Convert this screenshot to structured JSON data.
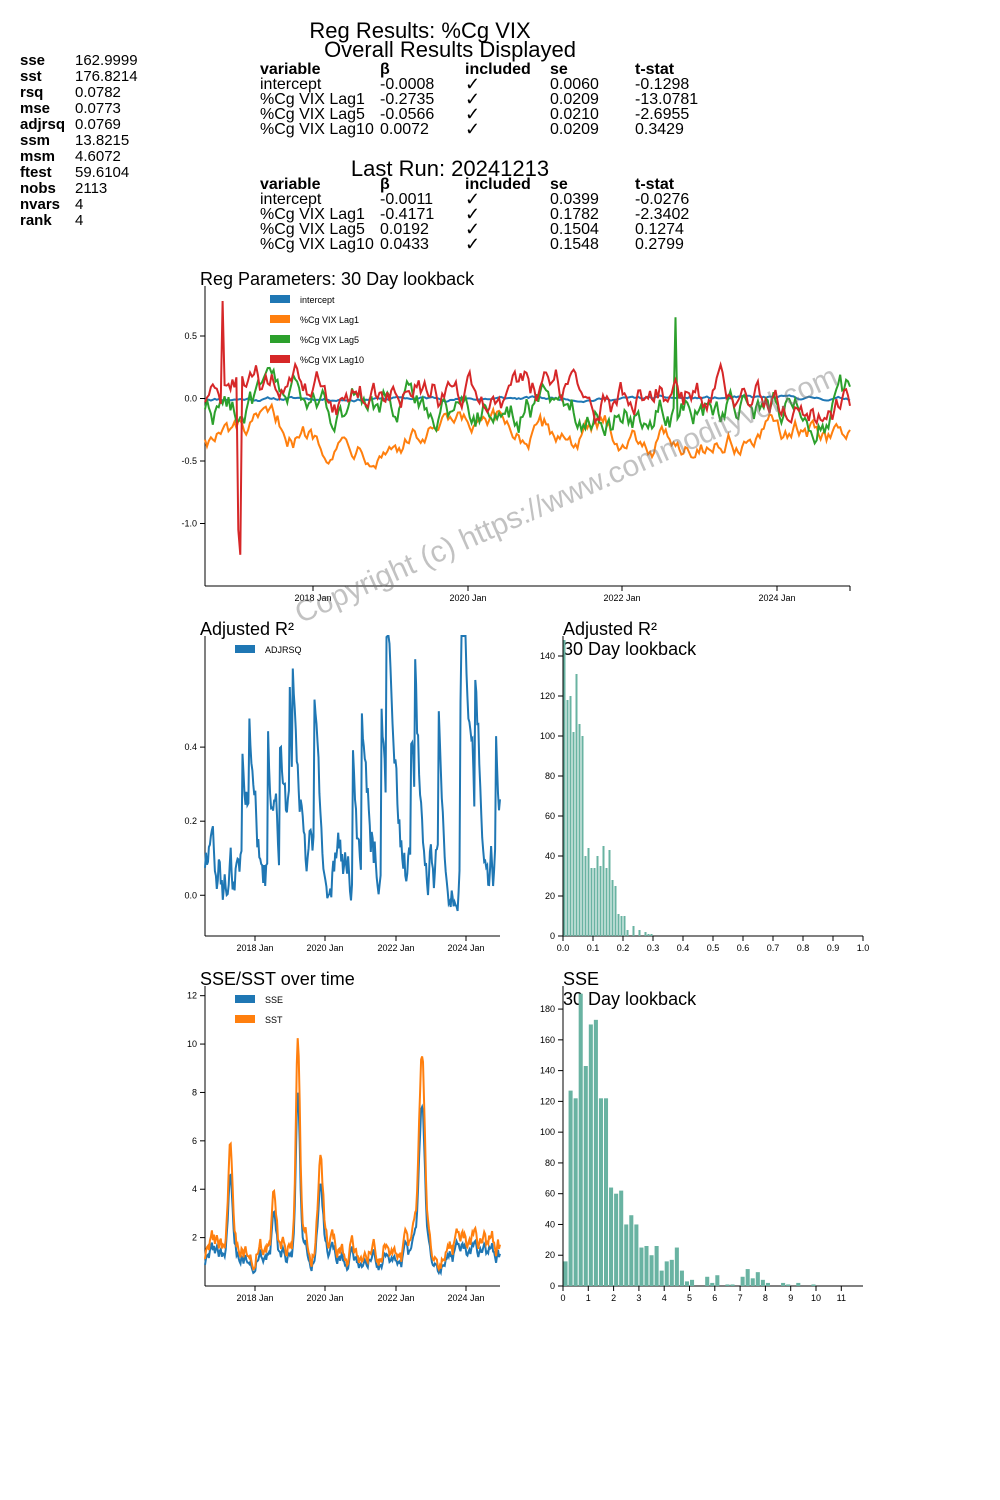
{
  "stats": [
    {
      "k": "sse",
      "v": "162.9999"
    },
    {
      "k": "sst",
      "v": "176.8214"
    },
    {
      "k": "rsq",
      "v": "0.0782"
    },
    {
      "k": "mse",
      "v": "0.0773"
    },
    {
      "k": "adjrsq",
      "v": "0.0769"
    },
    {
      "k": "ssm",
      "v": "13.8215"
    },
    {
      "k": "msm",
      "v": "4.6072"
    },
    {
      "k": "ftest",
      "v": "59.6104"
    },
    {
      "k": "nobs",
      "v": "2113"
    },
    {
      "k": "nvars",
      "v": "4"
    },
    {
      "k": "rank",
      "v": "4"
    }
  ],
  "header": {
    "title": "Reg Results: %Cg VIX",
    "subtitle": "Overall Results Displayed",
    "last_run": "Last Run: 20241213"
  },
  "table_headers": [
    "variable",
    "β",
    "included",
    "se",
    "t-stat"
  ],
  "overall_rows": [
    [
      "intercept",
      "-0.0008",
      "✓",
      "0.0060",
      "-0.1298"
    ],
    [
      "%Cg VIX Lag1",
      "-0.2735",
      "✓",
      "0.0209",
      "-13.0781"
    ],
    [
      "%Cg VIX Lag5",
      "-0.0566",
      "✓",
      "0.0210",
      "-2.6955"
    ],
    [
      "%Cg VIX Lag10",
      "0.0072",
      "✓",
      "0.0209",
      "0.3429"
    ]
  ],
  "last_rows": [
    [
      "intercept",
      "-0.0011",
      "✓",
      "0.0399",
      "-0.0276"
    ],
    [
      "%Cg VIX Lag1",
      "-0.4171",
      "✓",
      "0.1782",
      "-2.3402"
    ],
    [
      "%Cg VIX Lag5",
      "0.0192",
      "✓",
      "0.1504",
      "0.1274"
    ],
    [
      "%Cg VIX Lag10",
      "0.0433",
      "✓",
      "0.1548",
      "0.2799"
    ]
  ],
  "watermark": "Copyright (c) https://www.commodityvol.com",
  "colors": {
    "blue": "#1f77b4",
    "orange": "#ff7f0e",
    "green": "#2ca02c",
    "red": "#d62728",
    "teal": "#69b3a2"
  },
  "chart_data": [
    {
      "type": "line",
      "title": "Reg Parameters: 30 Day lookback",
      "x_ticks": [
        "2018 Jan",
        "2020 Jan",
        "2022 Jan",
        "2024 Jan"
      ],
      "y_ticks": [
        "0.5",
        "0.0",
        "-0.5",
        "-1.0"
      ],
      "ylim": [
        -1.5,
        0.9
      ],
      "legend": "top-left",
      "series": [
        {
          "name": "intercept",
          "color": "#1f77b4",
          "level": 0.0,
          "amp": 0.02
        },
        {
          "name": "%Cg VIX Lag1",
          "color": "#ff7f0e",
          "level": -0.3,
          "amp": 0.15
        },
        {
          "name": "%Cg VIX Lag5",
          "color": "#2ca02c",
          "level": -0.05,
          "amp": 0.22
        },
        {
          "name": "%Cg VIX Lag10",
          "color": "#d62728",
          "level": 0.0,
          "amp": 0.22
        }
      ]
    },
    {
      "type": "line",
      "title": "Adjusted R²",
      "x_ticks": [
        "2018 Jan",
        "2020 Jan",
        "2022 Jan",
        "2024 Jan"
      ],
      "y_ticks": [
        "0.4",
        "0.2",
        "0.0"
      ],
      "ylim": [
        -0.11,
        0.7
      ],
      "legend": "top-left",
      "series": [
        {
          "name": "ADJRSQ",
          "color": "#1f77b4"
        }
      ]
    },
    {
      "type": "bar",
      "title": "Adjusted R²",
      "subtitle": "30 Day lookback",
      "x_ticks": [
        "0.0",
        "0.1",
        "0.2",
        "0.3",
        "0.4",
        "0.5",
        "0.6",
        "0.7",
        "0.8",
        "0.9",
        "1.0"
      ],
      "y_ticks": [
        "140",
        "120",
        "100",
        "80",
        "60",
        "40",
        "20",
        "0"
      ],
      "ylim": [
        0,
        150
      ],
      "bin_width": 0.01,
      "values": [
        148,
        118,
        120,
        102,
        131,
        106,
        100,
        40,
        44,
        34,
        34,
        40,
        35,
        45,
        34,
        43,
        28,
        25,
        11,
        10,
        10,
        3,
        0,
        5,
        0,
        3,
        0,
        2,
        1,
        1,
        0,
        0,
        0,
        0,
        0,
        0,
        0,
        0,
        0,
        0,
        0,
        0,
        0,
        0,
        0,
        0,
        0,
        0,
        0,
        0,
        0,
        0,
        0,
        0,
        0,
        0,
        0,
        0,
        0,
        0,
        0,
        0,
        0,
        0,
        0,
        0,
        0,
        0,
        0,
        0,
        0,
        0,
        0,
        0,
        0,
        0,
        0,
        0,
        0,
        0,
        0,
        0,
        0,
        0,
        0,
        0,
        0,
        0,
        0,
        0,
        0,
        0,
        0,
        0,
        0,
        0,
        0,
        0,
        0,
        0
      ]
    },
    {
      "type": "line",
      "title": "SSE/SST over time",
      "x_ticks": [
        "2018 Jan",
        "2020 Jan",
        "2022 Jan",
        "2024 Jan"
      ],
      "y_ticks": [
        "12",
        "10",
        "8",
        "6",
        "4",
        "2"
      ],
      "ylim": [
        0,
        12.4
      ],
      "legend": "top-left",
      "series": [
        {
          "name": "SSE",
          "color": "#1f77b4"
        },
        {
          "name": "SST",
          "color": "#ff7f0e"
        }
      ]
    },
    {
      "type": "bar",
      "title": "SSE",
      "subtitle": "30 Day lookback",
      "x_ticks": [
        "0",
        "1",
        "2",
        "3",
        "4",
        "5",
        "6",
        "7",
        "8",
        "9",
        "10",
        "11"
      ],
      "y_ticks": [
        "180",
        "160",
        "140",
        "120",
        "100",
        "80",
        "60",
        "40",
        "20",
        "0"
      ],
      "ylim": [
        0,
        195
      ],
      "bin_width": 0.2,
      "values": [
        16,
        127,
        122,
        190,
        143,
        170,
        173,
        122,
        122,
        64,
        60,
        62,
        40,
        46,
        40,
        25,
        26,
        20,
        26,
        10,
        16,
        17,
        25,
        10,
        3,
        4,
        0,
        0,
        6,
        2,
        7,
        0,
        1,
        1,
        0,
        6,
        11,
        5,
        9,
        4,
        2,
        0,
        0,
        2,
        1,
        0,
        2,
        0,
        0,
        1,
        0,
        0,
        0,
        0,
        0,
        0,
        0,
        0,
        0,
        0
      ]
    }
  ]
}
